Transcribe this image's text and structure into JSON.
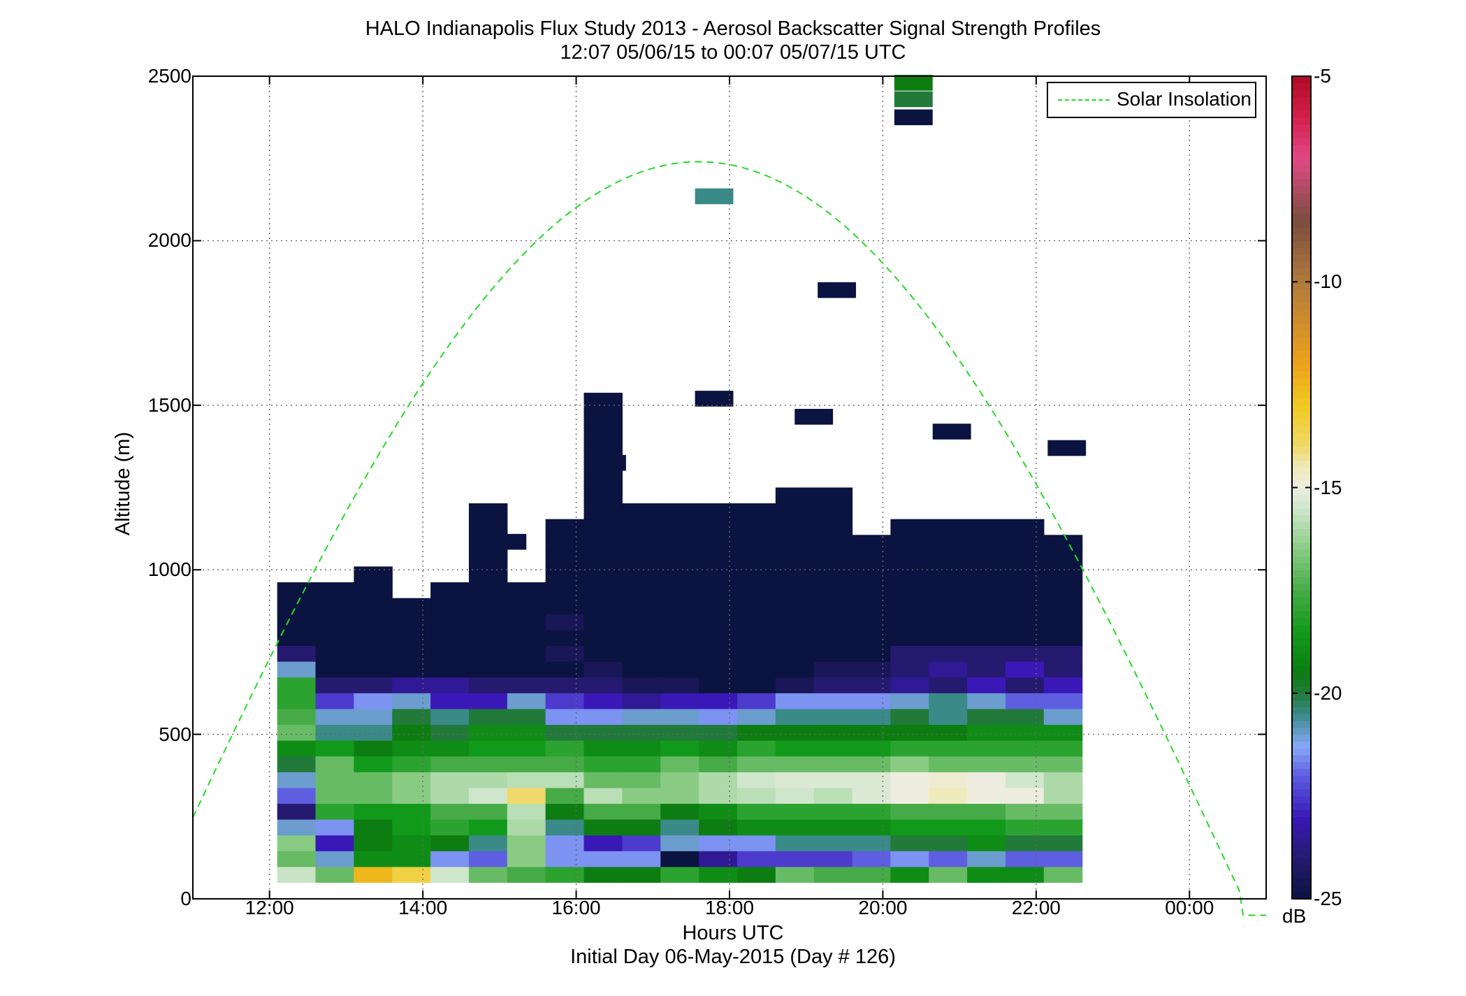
{
  "title_line1": "HALO Indianapolis Flux Study 2013 - Aerosol Backscatter Signal Strength Profiles",
  "title_line2": "12:07 05/06/15 to 00:07 05/07/15  UTC",
  "xlabel": "Hours UTC",
  "ylabel": "Altitude (m)",
  "subtitle": "Initial Day 06-May-2015 (Day # 126)",
  "legend_label": "Solar Insolation",
  "colorbar_unit": "dB",
  "colors": {
    "solar_line": "#22dd22",
    "colorbar_ticks": [
      "-5",
      "-10",
      "-15",
      "-20",
      "-25"
    ]
  },
  "chart_data": {
    "type": "heatmap",
    "x_ticks": [
      "12:00",
      "14:00",
      "16:00",
      "18:00",
      "20:00",
      "22:00",
      "00:00"
    ],
    "y_ticks": [
      "0",
      "500",
      "1000",
      "1500",
      "2000",
      "2500"
    ],
    "xlim_hours": [
      11,
      25
    ],
    "ylim": [
      0,
      2500
    ],
    "grid": true,
    "legend_position": "top-right",
    "colorbar_range_db": [
      -25,
      -5
    ],
    "colorbar_ticks": [
      -5,
      -10,
      -15,
      -20,
      -25
    ],
    "series": [
      {
        "name": "Solar Insolation",
        "style": "dashed",
        "peak_hour": 17.6,
        "peak_altitude": 2240,
        "zero_hours": [
          10.5,
          24.7
        ]
      }
    ],
    "column_start_hour": 12.1,
    "column_width_hours": 0.5,
    "row_bottom_m": 50,
    "row_height_m": 48,
    "columns_bottom_to_top": [
      [
        "-15.6",
        "-17",
        "-16.5",
        "-21",
        "-24",
        "-22",
        "-21",
        "-20",
        "-19",
        "-17",
        "-17.5",
        "-18",
        "-18",
        "-21",
        "-24",
        "-25",
        "-25",
        "-25",
        "-25"
      ],
      [
        "-17",
        "-21",
        "-23",
        "-21.5",
        "-18",
        "-17",
        "-17",
        "-17",
        "-18.5",
        "-20.5",
        "-21",
        "-22.5",
        "-24",
        "-25",
        "-25",
        "-25",
        "-25",
        "-25",
        "-25"
      ],
      [
        "-12.5",
        "-19",
        "-19.5",
        "-19.5",
        "-18.5",
        "-17",
        "-17",
        "-18.5",
        "-19.5",
        "-20.5",
        "-21",
        "-21.5",
        "-24",
        "-25",
        "-25",
        "-25",
        "-25",
        "-25",
        "-25",
        "-25"
      ],
      [
        "-13.5",
        "-19",
        "-19",
        "-18.5",
        "-18.5",
        "-16.5",
        "-16.5",
        "-18",
        "-19",
        "-19.5",
        "-20",
        "-21",
        "-23.5",
        "-25",
        "-25",
        "-25",
        "-25",
        "-25"
      ],
      [
        "-15.5",
        "-21.5",
        "-19.5",
        "-18",
        "-17.5",
        "-16",
        "-16",
        "-17.5",
        "-19",
        "-20",
        "-20.5",
        "-23",
        "-23.5",
        "-25",
        "-25",
        "-25",
        "-25",
        "-25",
        "-25"
      ],
      [
        "-17",
        "-22",
        "-20.5",
        "-18.5",
        "-17.5",
        "-15.5",
        "-16",
        "-17.5",
        "-18.5",
        "-19",
        "-20",
        "-23",
        "-24",
        "-25",
        "-25",
        "-25",
        "-25",
        "-25",
        "-25",
        "-25",
        "-25",
        "-25",
        "-25",
        "-25"
      ],
      [
        "-17.5",
        "-16.5",
        "-16.5",
        "-16",
        "-15.8",
        "-14",
        "-15.8",
        "-17.5",
        "-18.5",
        "-19",
        "-20",
        "-21",
        "-24",
        "-25",
        "-25",
        "-25",
        "-25",
        "-25",
        "-25"
      ],
      [
        "-18",
        "-21.5",
        "-21.5",
        "-20.5",
        "-19.5",
        "-17.5",
        "-15.8",
        "-17.5",
        "-18",
        "-20",
        "-21.5",
        "-22.5",
        "-24",
        "-25",
        "-24.5",
        "-25",
        "-24.5",
        "-25",
        "-25",
        "-25",
        "-25",
        "-25",
        "-25"
      ],
      [
        "-19.5",
        "-21.5",
        "-23",
        "-19.5",
        "-17.5",
        "-15.8",
        "-17",
        "-18",
        "-19",
        "-20",
        "-21.5",
        "-23",
        "-24",
        "-24.5",
        "-25",
        "-25",
        "-25",
        "-25",
        "-25",
        "-25",
        "-25",
        "-25",
        "-25",
        "-25",
        "-25",
        "-25",
        "-25",
        "-25",
        "-25",
        "-25",
        "-25"
      ],
      [
        "-19.5",
        "-21.5",
        "-22.5",
        "-19.5",
        "-17.5",
        "-16.5",
        "-17",
        "-18",
        "-19",
        "-20",
        "-21",
        "-23.5",
        "-24.5",
        "-25",
        "-25",
        "-25",
        "-25",
        "-25",
        "-25",
        "-25",
        "-25",
        "-25",
        "-25",
        "-25"
      ],
      [
        "-18",
        "-25",
        "-21",
        "-20.5",
        "-19.5",
        "-16.5",
        "-16.5",
        "-17",
        "-18.5",
        "-20",
        "-21",
        "-23",
        "-24.5",
        "-25",
        "-25",
        "-25",
        "-25",
        "-25",
        "-25",
        "-25",
        "-25",
        "-25",
        "-25",
        "-25"
      ],
      [
        "-19",
        "-23.5",
        "-21.5",
        "-19.5",
        "-19",
        "-16",
        "-16",
        "-17.5",
        "-19",
        "-20",
        "-21.5",
        "-23",
        "-25",
        "-25",
        "-25",
        "-25",
        "-25",
        "-25",
        "-25",
        "-25",
        "-25",
        "-25",
        "-25",
        "-25"
      ],
      [
        "-19.5",
        "-22.5",
        "-21.5",
        "-19",
        "-18",
        "-15.8",
        "-15.5",
        "-17",
        "-18",
        "-19.5",
        "-21",
        "-22.5",
        "-25",
        "-25",
        "-25",
        "-25",
        "-25",
        "-25",
        "-25",
        "-25",
        "-25",
        "-25",
        "-25",
        "-25"
      ],
      [
        "-17",
        "-22.5",
        "-20.5",
        "-19",
        "-18",
        "-15.5",
        "-15.3",
        "-17",
        "-18.5",
        "-19.5",
        "-20.5",
        "-21.5",
        "-24.5",
        "-25",
        "-25",
        "-25",
        "-25",
        "-25",
        "-25",
        "-25",
        "-25",
        "-25",
        "-25",
        "-25",
        "-25"
      ],
      [
        "-17.5",
        "-22.5",
        "-20.5",
        "-19",
        "-18",
        "-15.8",
        "-15.3",
        "-17",
        "-18.5",
        "-19.5",
        "-20.5",
        "-21.5",
        "-24",
        "-24.5",
        "-25",
        "-25",
        "-25",
        "-25",
        "-25",
        "-25",
        "-25",
        "-25",
        "-25",
        "-25",
        "-25"
      ],
      [
        "-17.5",
        "-22",
        "-20.5",
        "-19",
        "-18",
        "-15.3",
        "-15.3",
        "-17",
        "-18.5",
        "-19.5",
        "-20.5",
        "-21.5",
        "-24",
        "-24.5",
        "-25",
        "-25",
        "-25",
        "-25",
        "-25",
        "-25",
        "-25",
        "-25"
      ],
      [
        "-19",
        "-21.5",
        "-20",
        "-18.5",
        "-17.5",
        "-15",
        "-15",
        "-16.5",
        "-18",
        "-19.5",
        "-20",
        "-21",
        "-23.5",
        "-24",
        "-24",
        "-25",
        "-25",
        "-25",
        "-25",
        "-25",
        "-25",
        "-25",
        "-25"
      ],
      [
        "-17",
        "-22",
        "-20",
        "-18.5",
        "-17.5",
        "-14.5",
        "-14.8",
        "-17",
        "-18",
        "-19.5",
        "-20.5",
        "-20.5",
        "-24",
        "-23.5",
        "-24",
        "-25",
        "-25",
        "-25",
        "-25",
        "-25",
        "-25",
        "-25",
        "-25"
      ],
      [
        "-19",
        "-21",
        "-19",
        "-18.5",
        "-17.5",
        "-15",
        "-15",
        "-17",
        "-18",
        "-19",
        "-20",
        "-21",
        "-23",
        "-24",
        "-24",
        "-25",
        "-25",
        "-25",
        "-25",
        "-25",
        "-25",
        "-25",
        "-25"
      ],
      [
        "-19",
        "-22",
        "-20",
        "-18",
        "-17",
        "-15",
        "-15.5",
        "-17",
        "-18",
        "-19",
        "-20",
        "-22",
        "-24",
        "-23",
        "-24",
        "-25",
        "-25",
        "-25",
        "-25",
        "-25",
        "-25",
        "-25",
        "-25"
      ],
      [
        "-17",
        "-22",
        "-20",
        "-18",
        "-17",
        "-16",
        "-16",
        "-17",
        "-18",
        "-19",
        "-21",
        "-22",
        "-23",
        "-24",
        "-24",
        "-25",
        "-25",
        "-25",
        "-25",
        "-25",
        "-25",
        "-25"
      ]
    ],
    "isolated_cells": [
      {
        "hour": 15.1,
        "altitude": 1085,
        "db": -25
      },
      {
        "hour": 16.4,
        "altitude": 1325,
        "db": -25
      },
      {
        "hour": 17.8,
        "altitude": 2135,
        "db": -20.5
      },
      {
        "hour": 17.8,
        "altitude": 1520,
        "db": -25
      },
      {
        "hour": 19.1,
        "altitude": 1465,
        "db": -25
      },
      {
        "hour": 19.4,
        "altitude": 1850,
        "db": -25
      },
      {
        "hour": 20.4,
        "altitude": 2480,
        "db": -19.5
      },
      {
        "hour": 20.4,
        "altitude": 2430,
        "db": -20
      },
      {
        "hour": 20.4,
        "altitude": 2375,
        "db": -25
      },
      {
        "hour": 20.9,
        "altitude": 1420,
        "db": -25
      },
      {
        "hour": 22.4,
        "altitude": 1370,
        "db": -25
      }
    ]
  }
}
